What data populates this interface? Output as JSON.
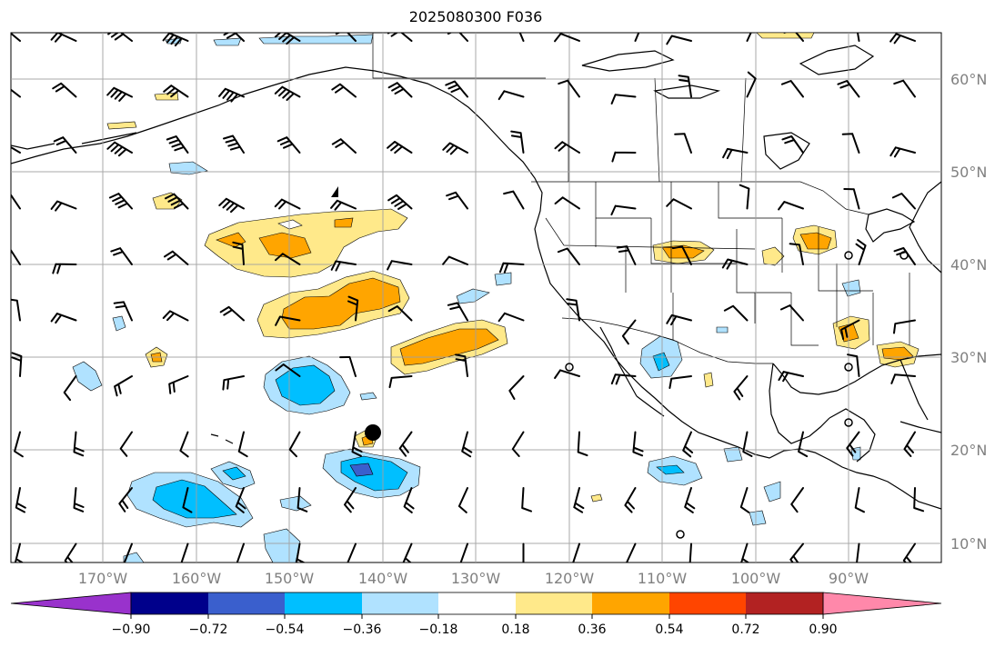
{
  "title": "2025080300 F036",
  "map": {
    "lon_labels": [
      "170°W",
      "160°W",
      "150°W",
      "140°W",
      "130°W",
      "120°W",
      "110°W",
      "100°W",
      "90°W"
    ],
    "lat_labels": [
      "60°N",
      "50°N",
      "40°N",
      "30°N",
      "20°N",
      "10°N"
    ],
    "gridline_color": "#a0a0a0",
    "label_color": "#808080",
    "marker": {
      "lon": -141,
      "lat": 22,
      "label": ""
    }
  },
  "colorbar": {
    "ticks": [
      "−0.90",
      "−0.72",
      "−0.54",
      "−0.36",
      "−0.18",
      "0.18",
      "0.36",
      "0.54",
      "0.72",
      "0.90"
    ],
    "colors": [
      "#9932CC",
      "#00008B",
      "#3A5FCD",
      "#00BFFF",
      "#B0E2FF",
      "#FFFFFF",
      "#FFE98A",
      "#FFA500",
      "#FF4500",
      "#B22222",
      "#FF88AA"
    ],
    "extend": "both"
  }
}
